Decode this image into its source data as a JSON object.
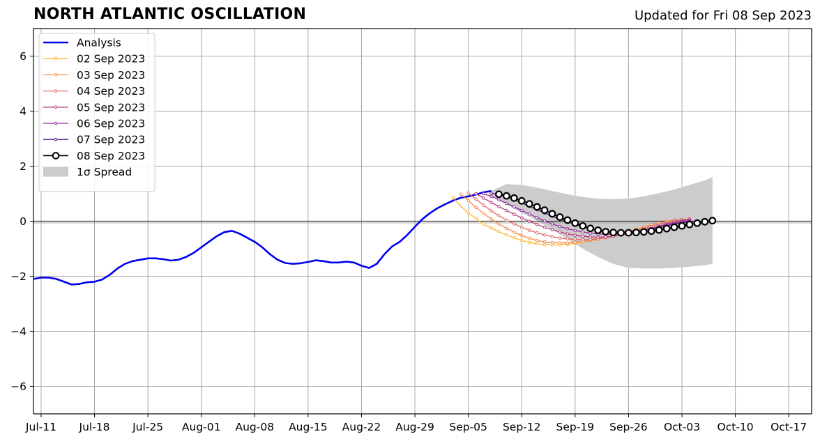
{
  "chart_data": {
    "type": "line",
    "title": "NORTH ATLANTIC OSCILLATION",
    "subtitle": "Updated for Fri 08 Sep 2023",
    "xlabel": "",
    "ylabel": "",
    "x_range": [
      "2023-07-10",
      "2023-10-20"
    ],
    "ylim": [
      -7,
      7
    ],
    "y_ticks": [
      -6,
      -4,
      -2,
      0,
      2,
      4,
      6
    ],
    "y_tick_labels": [
      "−6",
      "−4",
      "−2",
      "0",
      "2",
      "4",
      "6"
    ],
    "x_ticks": [
      "2023-07-11",
      "2023-07-18",
      "2023-07-25",
      "2023-08-01",
      "2023-08-08",
      "2023-08-15",
      "2023-08-22",
      "2023-08-29",
      "2023-09-05",
      "2023-09-12",
      "2023-09-19",
      "2023-09-26",
      "2023-10-03",
      "2023-10-10",
      "2023-10-17"
    ],
    "x_tick_labels": [
      "Jul-11",
      "Jul-18",
      "Jul-25",
      "Aug-01",
      "Aug-08",
      "Aug-15",
      "Aug-22",
      "Aug-29",
      "Sep-05",
      "Sep-12",
      "Sep-19",
      "Sep-26",
      "Oct-03",
      "Oct-10",
      "Oct-17"
    ],
    "grid": true,
    "zero_line": true,
    "legend_position": "top-left",
    "series": [
      {
        "name": "Analysis",
        "color": "#0000ee",
        "style": "line",
        "x": [
          "2023-07-10",
          "2023-07-11",
          "2023-07-12",
          "2023-07-13",
          "2023-07-14",
          "2023-07-15",
          "2023-07-16",
          "2023-07-17",
          "2023-07-18",
          "2023-07-19",
          "2023-07-20",
          "2023-07-21",
          "2023-07-22",
          "2023-07-23",
          "2023-07-24",
          "2023-07-25",
          "2023-07-26",
          "2023-07-27",
          "2023-07-28",
          "2023-07-29",
          "2023-07-30",
          "2023-07-31",
          "2023-08-01",
          "2023-08-02",
          "2023-08-03",
          "2023-08-04",
          "2023-08-05",
          "2023-08-06",
          "2023-08-07",
          "2023-08-08",
          "2023-08-09",
          "2023-08-10",
          "2023-08-11",
          "2023-08-12",
          "2023-08-13",
          "2023-08-14",
          "2023-08-15",
          "2023-08-16",
          "2023-08-17",
          "2023-08-18",
          "2023-08-19",
          "2023-08-20",
          "2023-08-21",
          "2023-08-22",
          "2023-08-23",
          "2023-08-24",
          "2023-08-25",
          "2023-08-26",
          "2023-08-27",
          "2023-08-28",
          "2023-08-29",
          "2023-08-30",
          "2023-08-31",
          "2023-09-01",
          "2023-09-02",
          "2023-09-03",
          "2023-09-04",
          "2023-09-05",
          "2023-09-06",
          "2023-09-07",
          "2023-09-08"
        ],
        "y": [
          -2.1,
          -2.05,
          -2.05,
          -2.1,
          -2.2,
          -2.3,
          -2.28,
          -2.22,
          -2.2,
          -2.12,
          -1.95,
          -1.72,
          -1.55,
          -1.45,
          -1.4,
          -1.35,
          -1.35,
          -1.38,
          -1.43,
          -1.4,
          -1.3,
          -1.15,
          -0.95,
          -0.75,
          -0.55,
          -0.4,
          -0.35,
          -0.45,
          -0.6,
          -0.75,
          -0.95,
          -1.2,
          -1.4,
          -1.52,
          -1.55,
          -1.53,
          -1.48,
          -1.42,
          -1.45,
          -1.5,
          -1.5,
          -1.47,
          -1.5,
          -1.62,
          -1.7,
          -1.55,
          -1.2,
          -0.92,
          -0.75,
          -0.5,
          -0.2,
          0.08,
          0.3,
          0.48,
          0.62,
          0.75,
          0.85,
          0.9,
          0.97,
          1.05,
          1.1
        ]
      },
      {
        "name": "02 Sep 2023",
        "color": "#fdb42f",
        "style": "line-small-markers",
        "x": [
          "2023-09-03",
          "2023-09-04",
          "2023-09-05",
          "2023-09-06",
          "2023-09-07",
          "2023-09-08",
          "2023-09-09",
          "2023-09-10",
          "2023-09-11",
          "2023-09-12",
          "2023-09-13",
          "2023-09-14",
          "2023-09-15",
          "2023-09-16",
          "2023-09-17",
          "2023-09-18",
          "2023-09-19",
          "2023-09-20",
          "2023-09-21",
          "2023-09-22",
          "2023-09-23",
          "2023-09-24",
          "2023-09-25",
          "2023-09-26",
          "2023-09-27",
          "2023-09-28",
          "2023-09-29",
          "2023-09-30",
          "2023-10-01",
          "2023-10-02"
        ],
        "y": [
          0.85,
          0.55,
          0.3,
          0.1,
          -0.1,
          -0.25,
          -0.38,
          -0.5,
          -0.6,
          -0.7,
          -0.77,
          -0.82,
          -0.85,
          -0.86,
          -0.86,
          -0.84,
          -0.8,
          -0.76,
          -0.71,
          -0.66,
          -0.6,
          -0.53,
          -0.46,
          -0.38,
          -0.3,
          -0.22,
          -0.14,
          -0.06,
          0.0,
          0.02
        ]
      },
      {
        "name": "03 Sep 2023",
        "color": "#f48849",
        "style": "line-small-markers",
        "x": [
          "2023-09-04",
          "2023-09-05",
          "2023-09-06",
          "2023-09-07",
          "2023-09-08",
          "2023-09-09",
          "2023-09-10",
          "2023-09-11",
          "2023-09-12",
          "2023-09-13",
          "2023-09-14",
          "2023-09-15",
          "2023-09-16",
          "2023-09-17",
          "2023-09-18",
          "2023-09-19",
          "2023-09-20",
          "2023-09-21",
          "2023-09-22",
          "2023-09-23",
          "2023-09-24",
          "2023-09-25",
          "2023-09-26",
          "2023-09-27",
          "2023-09-28",
          "2023-09-29",
          "2023-09-30",
          "2023-10-01",
          "2023-10-02",
          "2023-10-03"
        ],
        "y": [
          0.98,
          0.75,
          0.5,
          0.28,
          0.08,
          -0.1,
          -0.26,
          -0.4,
          -0.52,
          -0.62,
          -0.7,
          -0.75,
          -0.78,
          -0.79,
          -0.79,
          -0.77,
          -0.74,
          -0.7,
          -0.65,
          -0.59,
          -0.52,
          -0.45,
          -0.37,
          -0.29,
          -0.21,
          -0.13,
          -0.06,
          0.0,
          0.04,
          0.05
        ]
      },
      {
        "name": "04 Sep 2023",
        "color": "#e16462",
        "style": "line-small-markers",
        "x": [
          "2023-09-05",
          "2023-09-06",
          "2023-09-07",
          "2023-09-08",
          "2023-09-09",
          "2023-09-10",
          "2023-09-11",
          "2023-09-12",
          "2023-09-13",
          "2023-09-14",
          "2023-09-15",
          "2023-09-16",
          "2023-09-17",
          "2023-09-18",
          "2023-09-19",
          "2023-09-20",
          "2023-09-21",
          "2023-09-22",
          "2023-09-23",
          "2023-09-24",
          "2023-09-25",
          "2023-09-26",
          "2023-09-27",
          "2023-09-28",
          "2023-09-29",
          "2023-09-30",
          "2023-10-01",
          "2023-10-02",
          "2023-10-03",
          "2023-10-04"
        ],
        "y": [
          1.02,
          0.8,
          0.58,
          0.38,
          0.2,
          0.04,
          -0.1,
          -0.22,
          -0.33,
          -0.42,
          -0.5,
          -0.56,
          -0.61,
          -0.64,
          -0.66,
          -0.67,
          -0.66,
          -0.64,
          -0.6,
          -0.55,
          -0.49,
          -0.42,
          -0.35,
          -0.27,
          -0.19,
          -0.11,
          -0.04,
          0.02,
          0.06,
          0.08
        ]
      },
      {
        "name": "05 Sep 2023",
        "color": "#b73779",
        "style": "line-small-markers",
        "x": [
          "2023-09-06",
          "2023-09-07",
          "2023-09-08",
          "2023-09-09",
          "2023-09-10",
          "2023-09-11",
          "2023-09-12",
          "2023-09-13",
          "2023-09-14",
          "2023-09-15",
          "2023-09-16",
          "2023-09-17",
          "2023-09-18",
          "2023-09-19",
          "2023-09-20",
          "2023-09-21",
          "2023-09-22",
          "2023-09-23",
          "2023-09-24",
          "2023-09-25",
          "2023-09-26",
          "2023-09-27",
          "2023-09-28",
          "2023-09-29",
          "2023-09-30",
          "2023-10-01",
          "2023-10-02",
          "2023-10-03",
          "2023-10-04"
        ],
        "y": [
          1.0,
          0.84,
          0.68,
          0.53,
          0.39,
          0.25,
          0.12,
          0.0,
          -0.12,
          -0.22,
          -0.31,
          -0.39,
          -0.46,
          -0.51,
          -0.55,
          -0.57,
          -0.58,
          -0.57,
          -0.55,
          -0.51,
          -0.46,
          -0.4,
          -0.33,
          -0.26,
          -0.18,
          -0.1,
          -0.03,
          0.02,
          0.05
        ]
      },
      {
        "name": "06 Sep 2023",
        "color": "#8f2b9e",
        "style": "line-small-markers",
        "x": [
          "2023-09-07",
          "2023-09-08",
          "2023-09-09",
          "2023-09-10",
          "2023-09-11",
          "2023-09-12",
          "2023-09-13",
          "2023-09-14",
          "2023-09-15",
          "2023-09-16",
          "2023-09-17",
          "2023-09-18",
          "2023-09-19",
          "2023-09-20",
          "2023-09-21",
          "2023-09-22",
          "2023-09-23",
          "2023-09-24",
          "2023-09-25",
          "2023-09-26",
          "2023-09-27",
          "2023-09-28",
          "2023-09-29",
          "2023-09-30",
          "2023-10-01",
          "2023-10-02",
          "2023-10-03",
          "2023-10-04"
        ],
        "y": [
          1.0,
          0.9,
          0.78,
          0.65,
          0.52,
          0.39,
          0.26,
          0.13,
          0.01,
          -0.1,
          -0.19,
          -0.27,
          -0.34,
          -0.39,
          -0.43,
          -0.46,
          -0.47,
          -0.47,
          -0.45,
          -0.42,
          -0.38,
          -0.33,
          -0.27,
          -0.2,
          -0.13,
          -0.07,
          -0.02,
          0.01
        ]
      },
      {
        "name": "07 Sep 2023",
        "color": "#52127c",
        "style": "line-small-markers",
        "x": [
          "2023-09-08",
          "2023-09-09",
          "2023-09-10",
          "2023-09-11",
          "2023-09-12",
          "2023-09-13",
          "2023-09-14",
          "2023-09-15",
          "2023-09-16",
          "2023-09-17",
          "2023-09-18",
          "2023-09-19",
          "2023-09-20",
          "2023-09-21",
          "2023-09-22",
          "2023-09-23",
          "2023-09-24",
          "2023-09-25",
          "2023-09-26",
          "2023-09-27",
          "2023-09-28",
          "2023-09-29",
          "2023-09-30",
          "2023-10-01",
          "2023-10-02",
          "2023-10-03",
          "2023-10-04",
          "2023-10-05"
        ],
        "y": [
          1.02,
          0.96,
          0.88,
          0.78,
          0.66,
          0.54,
          0.42,
          0.3,
          0.18,
          0.07,
          -0.03,
          -0.12,
          -0.2,
          -0.27,
          -0.32,
          -0.36,
          -0.38,
          -0.39,
          -0.38,
          -0.36,
          -0.32,
          -0.28,
          -0.23,
          -0.17,
          -0.11,
          -0.06,
          -0.02,
          0.01
        ]
      },
      {
        "name": "08 Sep 2023",
        "color": "#000000",
        "style": "line-open-circles",
        "x": [
          "2023-09-09",
          "2023-09-10",
          "2023-09-11",
          "2023-09-12",
          "2023-09-13",
          "2023-09-14",
          "2023-09-15",
          "2023-09-16",
          "2023-09-17",
          "2023-09-18",
          "2023-09-19",
          "2023-09-20",
          "2023-09-21",
          "2023-09-22",
          "2023-09-23",
          "2023-09-24",
          "2023-09-25",
          "2023-09-26",
          "2023-09-27",
          "2023-09-28",
          "2023-09-29",
          "2023-09-30",
          "2023-10-01",
          "2023-10-02",
          "2023-10-03",
          "2023-10-04",
          "2023-10-05",
          "2023-10-06",
          "2023-10-07"
        ],
        "y": [
          0.98,
          0.92,
          0.84,
          0.74,
          0.63,
          0.52,
          0.4,
          0.27,
          0.15,
          0.04,
          -0.07,
          -0.17,
          -0.26,
          -0.33,
          -0.38,
          -0.41,
          -0.42,
          -0.42,
          -0.41,
          -0.39,
          -0.36,
          -0.32,
          -0.27,
          -0.22,
          -0.17,
          -0.12,
          -0.07,
          -0.02,
          0.02
        ]
      }
    ],
    "spread": {
      "name": "1σ Spread",
      "color": "#cccccc",
      "x": [
        "2023-09-08",
        "2023-09-10",
        "2023-09-12",
        "2023-09-14",
        "2023-09-16",
        "2023-09-18",
        "2023-09-20",
        "2023-09-22",
        "2023-09-24",
        "2023-09-26",
        "2023-09-28",
        "2023-09-30",
        "2023-10-02",
        "2023-10-04",
        "2023-10-06",
        "2023-10-07"
      ],
      "upper": [
        1.1,
        1.35,
        1.32,
        1.22,
        1.1,
        0.98,
        0.88,
        0.82,
        0.8,
        0.82,
        0.9,
        1.02,
        1.15,
        1.32,
        1.48,
        1.6
      ],
      "lower": [
        0.9,
        0.6,
        0.3,
        0.02,
        -0.3,
        -0.65,
        -1.0,
        -1.3,
        -1.55,
        -1.7,
        -1.72,
        -1.72,
        -1.7,
        -1.65,
        -1.6,
        -1.55
      ]
    }
  }
}
